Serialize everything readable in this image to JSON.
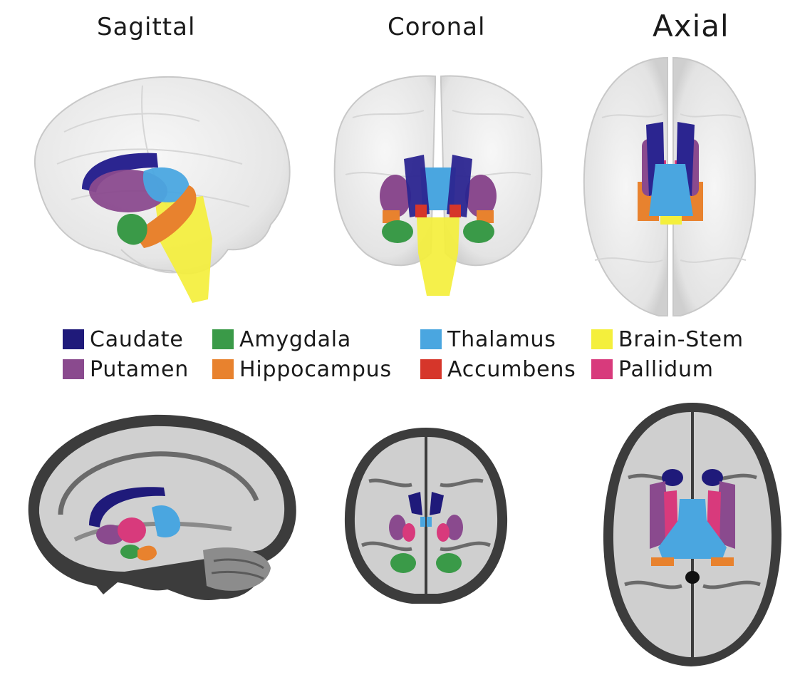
{
  "views": [
    {
      "id": "sagittal",
      "title": "Sagittal"
    },
    {
      "id": "coronal",
      "title": "Coronal"
    },
    {
      "id": "axial",
      "title": "Axial"
    }
  ],
  "legend": [
    {
      "label": "Caudate",
      "color": "#1f1a7a"
    },
    {
      "label": "Amygdala",
      "color": "#3a9a48"
    },
    {
      "label": "Thalamus",
      "color": "#4aa6e0"
    },
    {
      "label": "Brain-Stem",
      "color": "#f4ef3c"
    },
    {
      "label": "Putamen",
      "color": "#8a4a8e"
    },
    {
      "label": "Hippocampus",
      "color": "#e8822e"
    },
    {
      "label": "Accumbens",
      "color": "#d6362a"
    },
    {
      "label": "Pallidum",
      "color": "#d83a7c"
    }
  ]
}
